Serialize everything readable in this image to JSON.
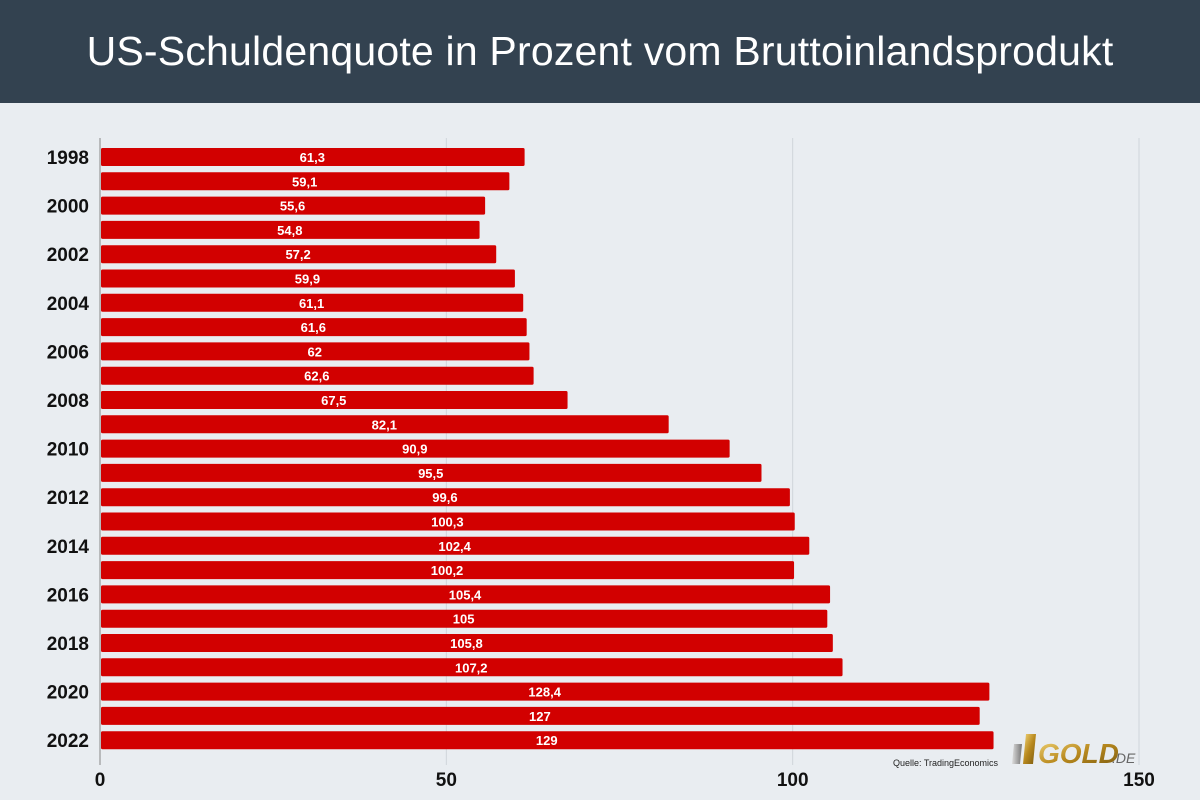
{
  "title": "US-Schuldenquote in Prozent vom Bruttoinlandsprodukt",
  "source": "Quelle: TradingEconomics",
  "logo_text": "GOLD.DE",
  "colors": {
    "header": "#334250",
    "bar": "#d20000",
    "background": "#e9edf1",
    "grid": "#cfd5db"
  },
  "chart_data": {
    "type": "bar",
    "orientation": "horizontal",
    "categories": [
      "1998",
      "",
      "2000",
      "",
      "2002",
      "",
      "2004",
      "",
      "2006",
      "",
      "2008",
      "",
      "2010",
      "",
      "2012",
      "",
      "2014",
      "",
      "2016",
      "",
      "2018",
      "",
      "2020",
      "",
      "2022"
    ],
    "values": [
      61.3,
      59.1,
      55.6,
      54.8,
      57.2,
      59.9,
      61.1,
      61.6,
      62,
      62.6,
      67.5,
      82.1,
      90.9,
      95.5,
      99.6,
      100.3,
      102.4,
      100.2,
      105.4,
      105,
      105.8,
      107.2,
      128.4,
      127,
      129
    ],
    "value_labels": [
      "61,3",
      "59,1",
      "55,6",
      "54,8",
      "57,2",
      "59,9",
      "61,1",
      "61,6",
      "62",
      "62,6",
      "67,5",
      "82,1",
      "90,9",
      "95,5",
      "99,6",
      "100,3",
      "102,4",
      "100,2",
      "105,4",
      "105",
      "105,8",
      "107,2",
      "128,4",
      "127",
      "129"
    ],
    "xlim": [
      0,
      150
    ],
    "x_ticks": [
      "0",
      "50",
      "100",
      "150"
    ],
    "x_tick_values": [
      0,
      50,
      100,
      150
    ],
    "grid": "vertical",
    "title": "US-Schuldenquote in Prozent vom Bruttoinlandsprodukt",
    "xlabel": "",
    "ylabel": ""
  }
}
